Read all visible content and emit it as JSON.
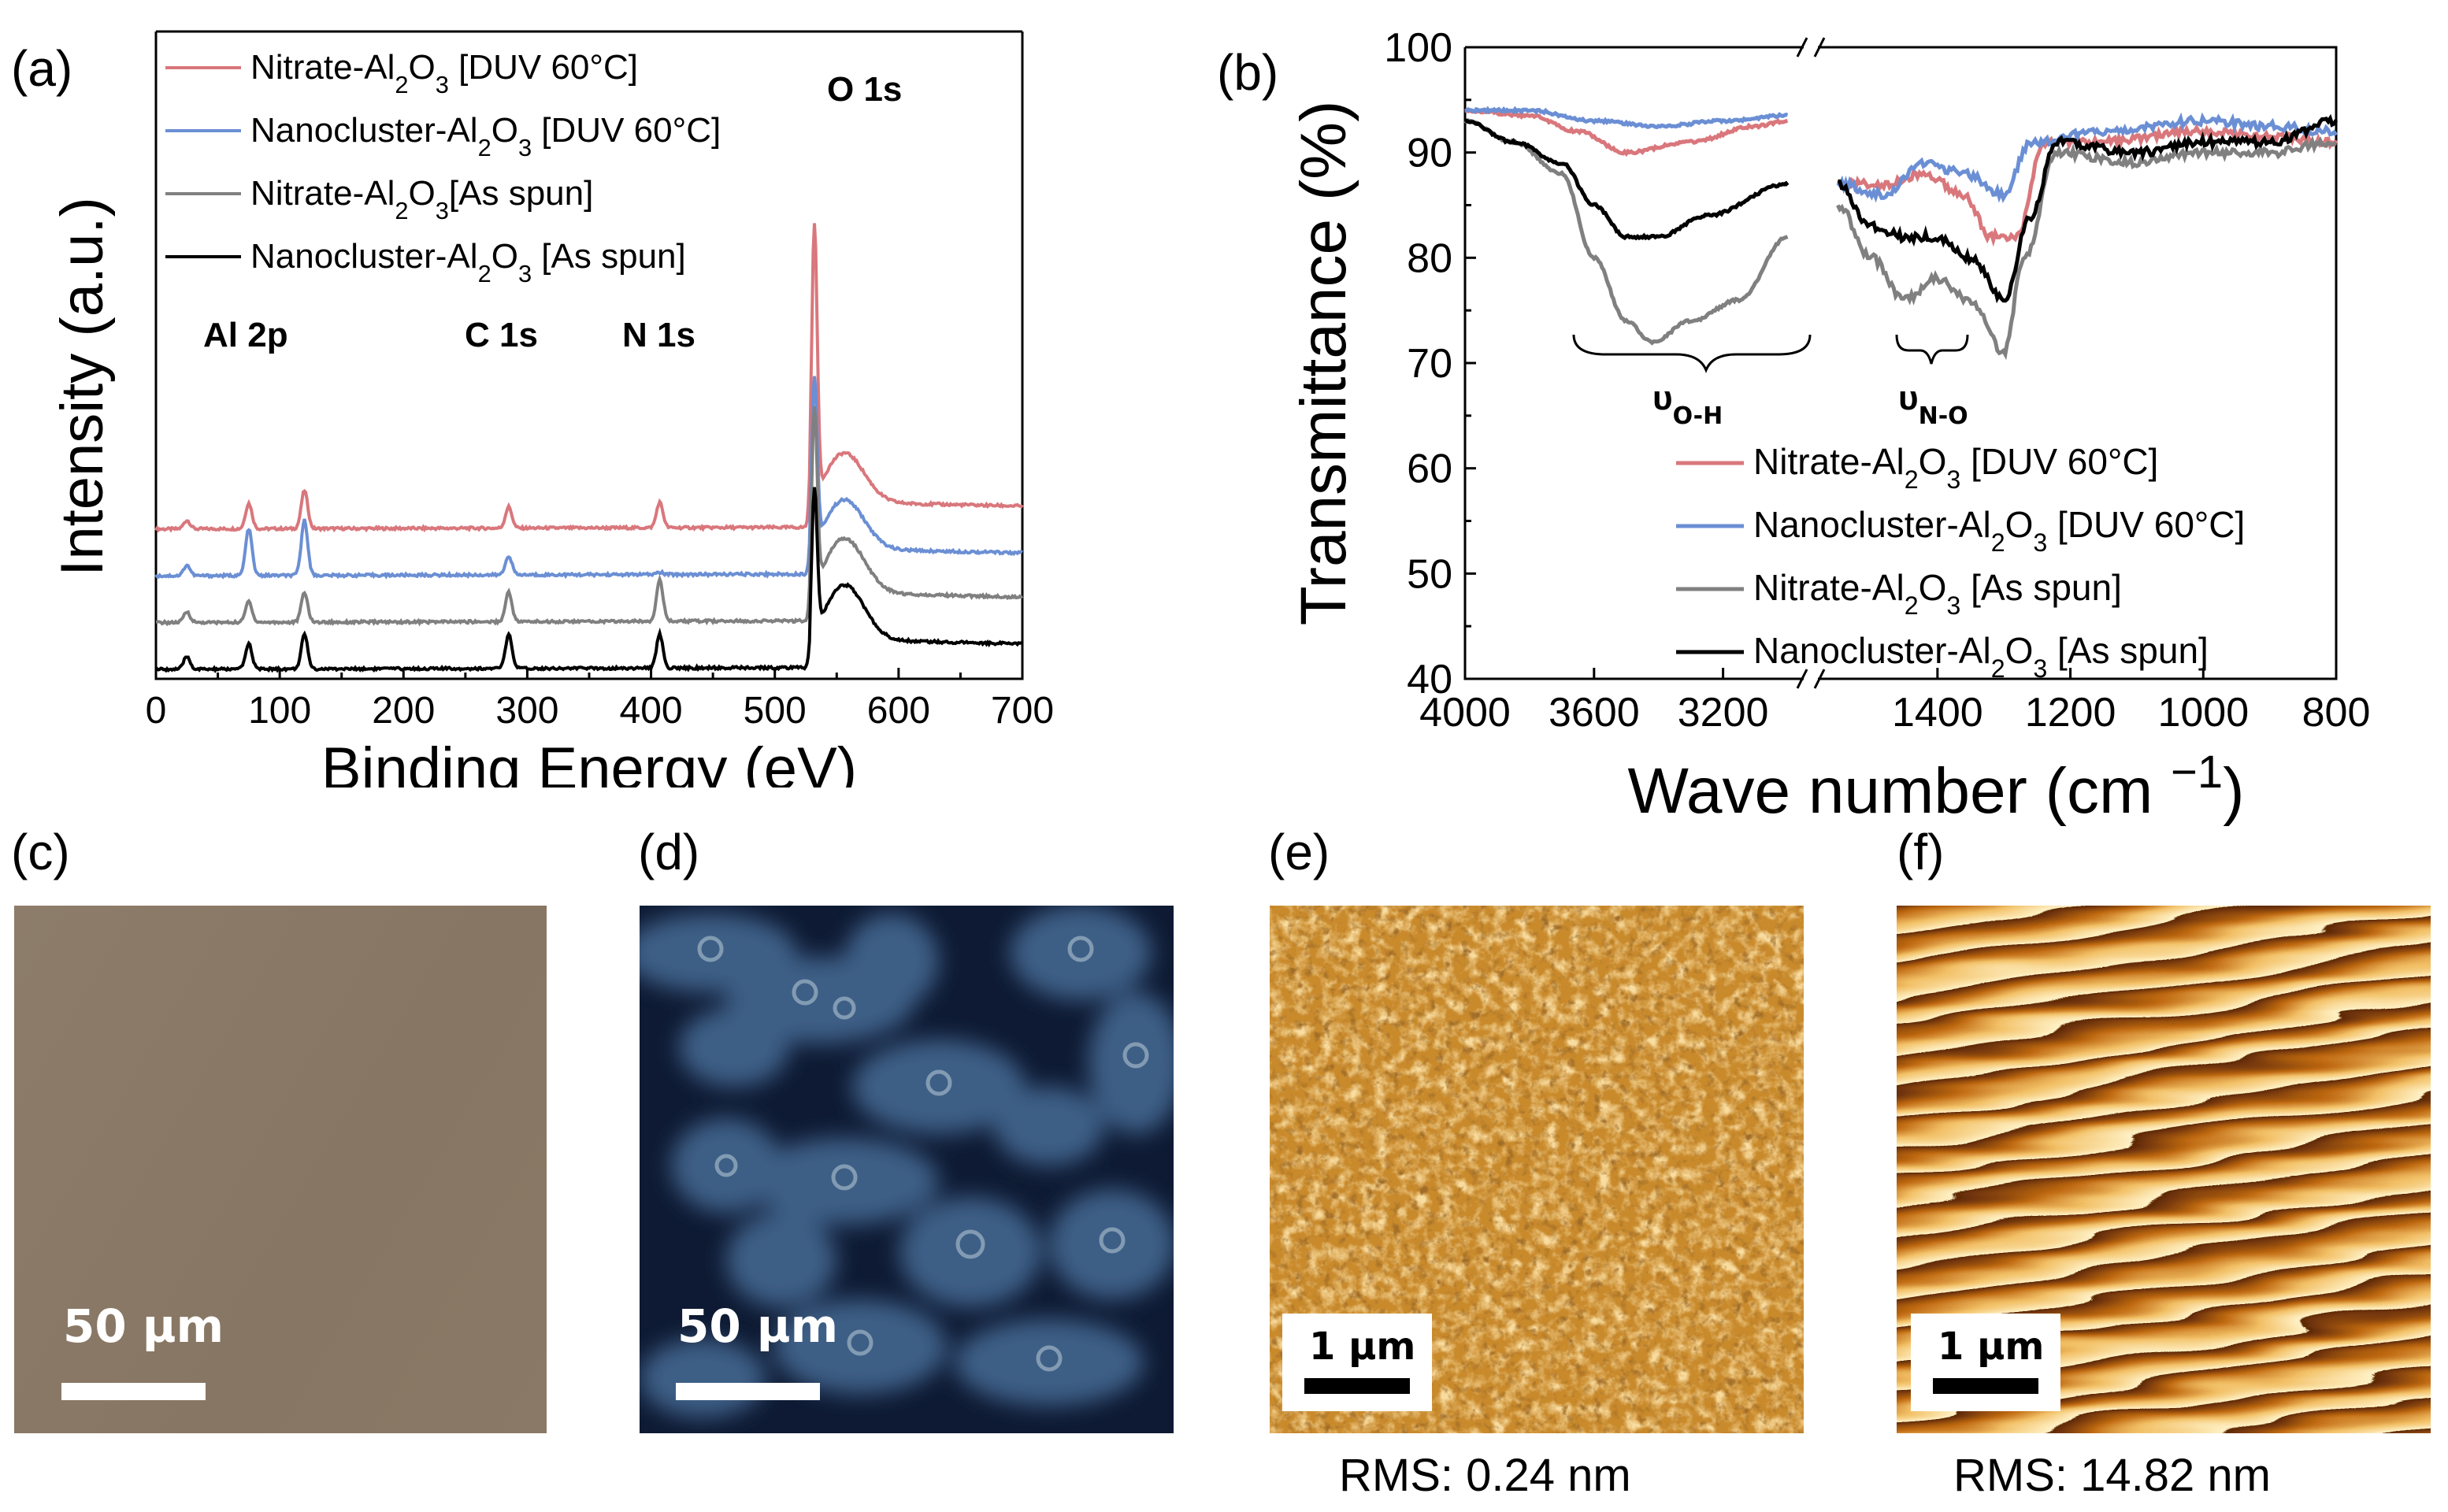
{
  "panels": {
    "a": {
      "label": "(a)"
    },
    "b": {
      "label": "(b)"
    },
    "c": {
      "label": "(c)",
      "scale": "50 µm"
    },
    "d": {
      "label": "(d)",
      "scale": "50 µm"
    },
    "e": {
      "label": "(e)",
      "scale": "1 µm",
      "rms": "RMS: 0.24 nm"
    },
    "f": {
      "label": "(f)",
      "scale": "1 µm",
      "rms": "RMS: 14.82 nm"
    }
  },
  "colors": {
    "red": "#d9777c",
    "blue": "#6b8fd4",
    "gray": "#808080",
    "black": "#000000"
  },
  "chart_data": [
    {
      "type": "line",
      "title": "",
      "xlabel": "Binding Energy (eV)",
      "ylabel": "Intensity (a.u.)",
      "xlim": [
        0,
        700
      ],
      "xticks": [
        "0",
        "100",
        "200",
        "300",
        "400",
        "500",
        "600",
        "700"
      ],
      "legend": [
        {
          "base": "Nitrate-Al",
          "sub1": "2",
          "mid": "O",
          "sub2": "3",
          "suffix": " [DUV 60°C]",
          "color": "red"
        },
        {
          "base": "Nanocluster-Al",
          "sub1": "2",
          "mid": "O",
          "sub2": "3",
          "suffix": " [DUV 60°C]",
          "color": "blue"
        },
        {
          "base": "Nitrate-Al",
          "sub1": "2",
          "mid": "O",
          "sub2": "3",
          "suffix": "[As spun]",
          "color": "gray"
        },
        {
          "base": "Nanocluster-Al",
          "sub1": "2",
          "mid": "O",
          "sub2": "3",
          "suffix": " [As spun]",
          "color": "black"
        }
      ],
      "annotations": [
        "Al 2p",
        "C 1s",
        "N 1s",
        "O 1s"
      ],
      "series": [
        {
          "name": "Nitrate-Al2O3 [DUV 60°C]",
          "color": "red",
          "peaks": [
            [
              25,
              0.2
            ],
            [
              75,
              0.6
            ],
            [
              120,
              0.9
            ],
            [
              285,
              0.5
            ],
            [
              407,
              0.6
            ],
            [
              532,
              6.5
            ]
          ],
          "offset": 3.3,
          "tail": 0.9
        },
        {
          "name": "Nanocluster-Al2O3 [DUV 60°C]",
          "color": "blue",
          "peaks": [
            [
              25,
              0.25
            ],
            [
              75,
              1.1
            ],
            [
              120,
              1.3
            ],
            [
              285,
              0.45
            ],
            [
              407,
              0.05
            ],
            [
              532,
              4.0
            ]
          ],
          "offset": 2.2,
          "tail": 0.9
        },
        {
          "name": "Nitrate-Al2O3 [As spun]",
          "color": "gray",
          "peaks": [
            [
              25,
              0.25
            ],
            [
              75,
              0.5
            ],
            [
              120,
              0.7
            ],
            [
              285,
              0.7
            ],
            [
              407,
              1.0
            ],
            [
              532,
              4.3
            ]
          ],
          "offset": 1.1,
          "tail": 1.0
        },
        {
          "name": "Nanocluster-Al2O3 [As spun]",
          "color": "black",
          "peaks": [
            [
              25,
              0.3
            ],
            [
              75,
              0.6
            ],
            [
              120,
              0.8
            ],
            [
              285,
              0.8
            ],
            [
              407,
              0.8
            ],
            [
              532,
              3.5
            ]
          ],
          "offset": 0,
          "tail": 1.0
        }
      ]
    },
    {
      "type": "line",
      "title": "",
      "xlabel": "Wave number (cm",
      "xlabel_sup": "−1",
      "xlabel_close": ")",
      "ylabel": "Transmittance (%)",
      "ylim": [
        40,
        100
      ],
      "yticks": [
        "40",
        "50",
        "60",
        "70",
        "80",
        "90",
        "100"
      ],
      "xticks_left": [
        "4000",
        "3600",
        "3200"
      ],
      "xticks_right": [
        "1400",
        "1200",
        "1000",
        "800"
      ],
      "annotations": {
        "oh_base": "υ",
        "oh_sub": "O-H",
        "no_base": "υ",
        "no_sub": "N-O"
      },
      "legend": [
        {
          "base": "Nitrate-Al",
          "sub1": "2",
          "mid": "O",
          "sub2": "3",
          "suffix": " [DUV 60°C]",
          "color": "red"
        },
        {
          "base": "Nanocluster-Al",
          "sub1": "2",
          "mid": "O",
          "sub2": "3",
          "suffix": " [DUV 60°C]",
          "color": "blue"
        },
        {
          "base": "Nitrate-Al",
          "sub1": "2",
          "mid": "O",
          "sub2": "3",
          "suffix": " [As spun]",
          "color": "gray"
        },
        {
          "base": "Nanocluster-Al",
          "sub1": "2",
          "mid": "O",
          "sub2": "3",
          "suffix": " [As spun]",
          "color": "black"
        }
      ],
      "series": [
        {
          "name": "Nitrate-Al2O3 [DUV 60°C]",
          "color": "red",
          "left": [
            [
              4000,
              94
            ],
            [
              3800,
              93.5
            ],
            [
              3650,
              92
            ],
            [
              3500,
              90
            ],
            [
              3300,
              91
            ],
            [
              3100,
              92.5
            ],
            [
              3000,
              93
            ]
          ],
          "right": [
            [
              1550,
              87
            ],
            [
              1480,
              87
            ],
            [
              1420,
              88
            ],
            [
              1360,
              86
            ],
            [
              1320,
              82
            ],
            [
              1280,
              82
            ],
            [
              1240,
              91
            ],
            [
              1150,
              91
            ],
            [
              1000,
              92
            ],
            [
              900,
              91.5
            ],
            [
              800,
              91
            ]
          ]
        },
        {
          "name": "Nanocluster-Al2O3 [DUV 60°C]",
          "color": "blue",
          "left": [
            [
              4000,
              94
            ],
            [
              3800,
              94
            ],
            [
              3600,
              93
            ],
            [
              3400,
              92.5
            ],
            [
              3200,
              93
            ],
            [
              3000,
              93.5
            ]
          ],
          "right": [
            [
              1550,
              87
            ],
            [
              1480,
              86
            ],
            [
              1420,
              89
            ],
            [
              1360,
              88
            ],
            [
              1300,
              86
            ],
            [
              1260,
              91
            ],
            [
              1150,
              92
            ],
            [
              1000,
              93
            ],
            [
              900,
              92.5
            ],
            [
              800,
              92
            ]
          ]
        },
        {
          "name": "Nitrate-Al2O3 [As spun]",
          "color": "gray",
          "left": [
            [
              4000,
              93
            ],
            [
              3850,
              91
            ],
            [
              3700,
              88
            ],
            [
              3600,
              80
            ],
            [
              3500,
              74
            ],
            [
              3420,
              72
            ],
            [
              3300,
              74
            ],
            [
              3150,
              76
            ],
            [
              3000,
              82
            ]
          ],
          "right": [
            [
              1550,
              85
            ],
            [
              1500,
              80
            ],
            [
              1450,
              76
            ],
            [
              1400,
              78
            ],
            [
              1350,
              76
            ],
            [
              1300,
              71
            ],
            [
              1270,
              80
            ],
            [
              1220,
              90
            ],
            [
              1100,
              89
            ],
            [
              1000,
              90
            ],
            [
              900,
              90
            ],
            [
              800,
              91
            ]
          ]
        },
        {
          "name": "Nanocluster-Al2O3 [As spun]",
          "color": "black",
          "left": [
            [
              4000,
              93
            ],
            [
              3850,
              91
            ],
            [
              3700,
              89
            ],
            [
              3600,
              85
            ],
            [
              3500,
              82
            ],
            [
              3400,
              82
            ],
            [
              3250,
              84
            ],
            [
              3000,
              87
            ]
          ],
          "right": [
            [
              1550,
              87
            ],
            [
              1500,
              83
            ],
            [
              1450,
              82
            ],
            [
              1400,
              82
            ],
            [
              1350,
              80
            ],
            [
              1300,
              76
            ],
            [
              1260,
              84
            ],
            [
              1220,
              91
            ],
            [
              1100,
              90
            ],
            [
              1000,
              91
            ],
            [
              900,
              91
            ],
            [
              800,
              93
            ]
          ]
        }
      ]
    }
  ]
}
